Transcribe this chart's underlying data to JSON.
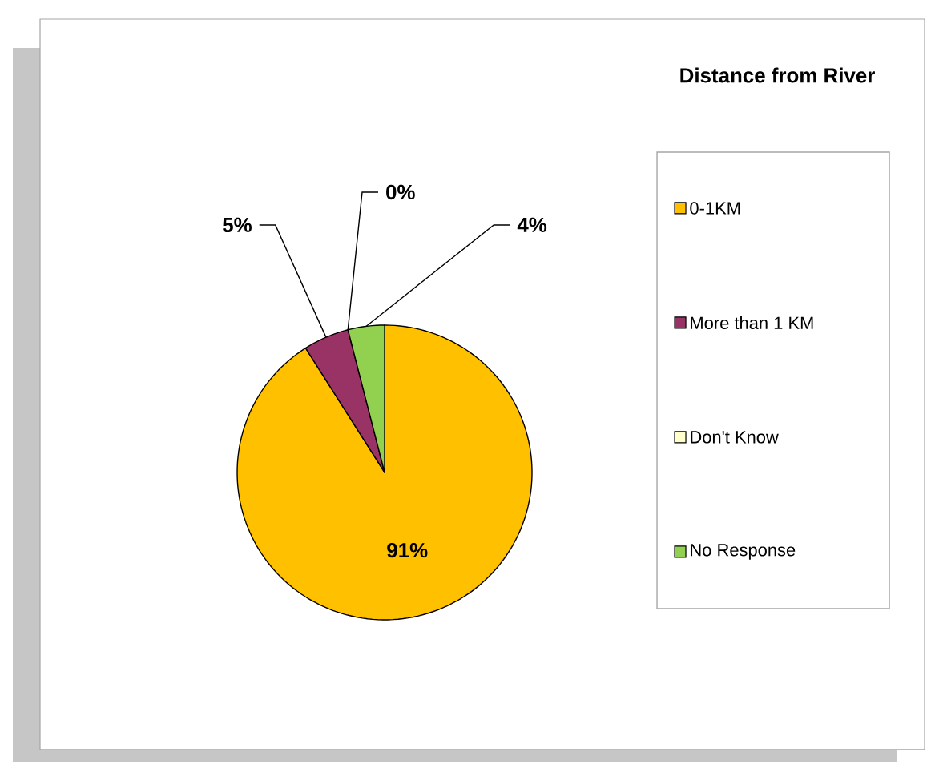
{
  "chart_data": {
    "type": "pie",
    "title": "Distance from River",
    "categories": [
      "0-1KM",
      "More than 1 KM",
      "Don't Know",
      "No Response"
    ],
    "values": [
      91,
      5,
      0,
      4
    ],
    "colors": [
      "#ffc000",
      "#993366",
      "#ffffcc",
      "#92d050"
    ],
    "value_labels": [
      "91%",
      "5%",
      "0%",
      "4%"
    ],
    "legend": "right"
  }
}
